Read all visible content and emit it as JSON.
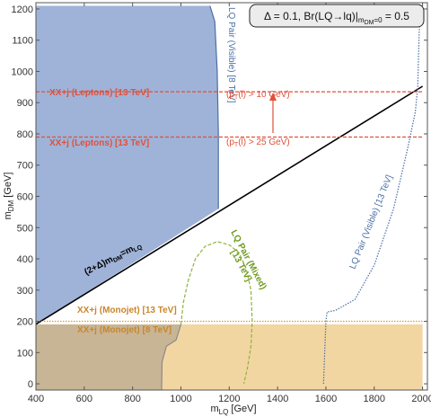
{
  "chart_data": {
    "type": "exclusion-plot",
    "xlabel": "m_LQ [GeV]",
    "ylabel": "m_DM [GeV]",
    "xlim": [
      400,
      2020
    ],
    "ylim": [
      -20,
      1220
    ],
    "x_ticks": [
      400,
      600,
      800,
      1000,
      1200,
      1400,
      1600,
      1800,
      2000
    ],
    "y_ticks": [
      0,
      100,
      200,
      300,
      400,
      500,
      600,
      700,
      800,
      900,
      1000,
      1100,
      1200
    ],
    "parameters": "Δ = 0.1, Br(LQ→lq)|m_DM=0 = 0.5",
    "regions": [
      {
        "name": "LQ Pair (Visible) [8 TeV]",
        "color": "#9fb3d8",
        "edge_color": "#4a6fa5",
        "points": [
          [
            400,
            190
          ],
          [
            400,
            1210
          ],
          [
            1120,
            1210
          ],
          [
            1140,
            1160
          ],
          [
            1150,
            1000
          ],
          [
            1155,
            800
          ],
          [
            1155,
            560
          ]
        ]
      },
      {
        "name": "XX+j (Monojet) [8 TeV]",
        "color": "#f2d6a2",
        "points": [
          [
            400,
            -20
          ],
          [
            2000,
            -20
          ],
          [
            2000,
            190
          ],
          [
            400,
            190
          ]
        ]
      },
      {
        "name": "overlap",
        "color": "#c8b596",
        "points": [
          [
            400,
            -20
          ],
          [
            920,
            -20
          ],
          [
            922,
            70
          ],
          [
            940,
            120
          ],
          [
            980,
            140
          ],
          [
            1000,
            190
          ],
          [
            400,
            190
          ]
        ]
      }
    ],
    "curves": [
      {
        "name": "(2+Δ)m_DM=m_LQ",
        "color": "#000000",
        "style": "solid",
        "points": [
          [
            400,
            190.5
          ],
          [
            2000,
            952.4
          ]
        ]
      },
      {
        "name": "XX+j (Leptons) [13 TeV] (p_T(l) > 10 GeV)",
        "color": "#e0503a",
        "style": "dashed",
        "points": [
          [
            400,
            935
          ],
          [
            2000,
            935
          ]
        ]
      },
      {
        "name": "XX+j (Leptons) [13 TeV] (p_T(l) > 25 GeV)",
        "color": "#e0503a",
        "style": "dashed",
        "points": [
          [
            400,
            790
          ],
          [
            2000,
            790
          ]
        ]
      },
      {
        "name": "XX+j (Monojet) [13 TeV]",
        "color": "#d99a2b",
        "style": "dotted",
        "points": [
          [
            400,
            200
          ],
          [
            2000,
            200
          ]
        ]
      },
      {
        "name": "LQ Pair (Mixed) [13 TeV]",
        "color": "#8fb33a",
        "style": "dashed",
        "points": [
          [
            1000,
            190
          ],
          [
            1010,
            260
          ],
          [
            1030,
            330
          ],
          [
            1060,
            400
          ],
          [
            1100,
            440
          ],
          [
            1150,
            455
          ],
          [
            1200,
            445
          ],
          [
            1240,
            420
          ],
          [
            1270,
            370
          ],
          [
            1290,
            300
          ],
          [
            1295,
            200
          ],
          [
            1290,
            120
          ],
          [
            1275,
            50
          ],
          [
            1260,
            0
          ]
        ]
      },
      {
        "name": "LQ Pair (Visible) [13 TeV]",
        "color": "#4a6fa5",
        "style": "dotted",
        "points": [
          [
            1590,
            0
          ],
          [
            1595,
            100
          ],
          [
            1600,
            200
          ],
          [
            1605,
            230
          ],
          [
            1640,
            235
          ],
          [
            1720,
            270
          ],
          [
            1800,
            380
          ],
          [
            1880,
            560
          ],
          [
            1940,
            760
          ],
          [
            1970,
            870
          ],
          [
            1980,
            950
          ],
          [
            1985,
            1100
          ],
          [
            1990,
            1200
          ]
        ]
      }
    ],
    "annotations": [
      {
        "text": "LQ Pair (Visible) [8 TeV]",
        "color": "#4a6fa5"
      },
      {
        "text": "XX+j (Leptons) [13 TeV]",
        "color": "#e0503a"
      },
      {
        "text": "XX+j (Leptons) [13 TeV]",
        "color": "#e0503a"
      },
      {
        "text": "(p_T(l) > 10 GeV)",
        "color": "#e0503a"
      },
      {
        "text": "(p_T(l) > 25 GeV)",
        "color": "#e0503a"
      },
      {
        "text": "(2+Δ)m_DM=m_LQ",
        "color": "#000000"
      },
      {
        "text": "LQ Pair (Mixed) [13 TeV]",
        "color": "#6f9a1e"
      },
      {
        "text": "LQ Pair (Visible) [13 TeV]",
        "color": "#4a6fa5"
      },
      {
        "text": "XX+j (Monojet) [13 TeV]",
        "color": "#c9862a"
      },
      {
        "text": "XX+j (Monojet) [8 TeV]",
        "color": "#c9862a"
      }
    ]
  }
}
